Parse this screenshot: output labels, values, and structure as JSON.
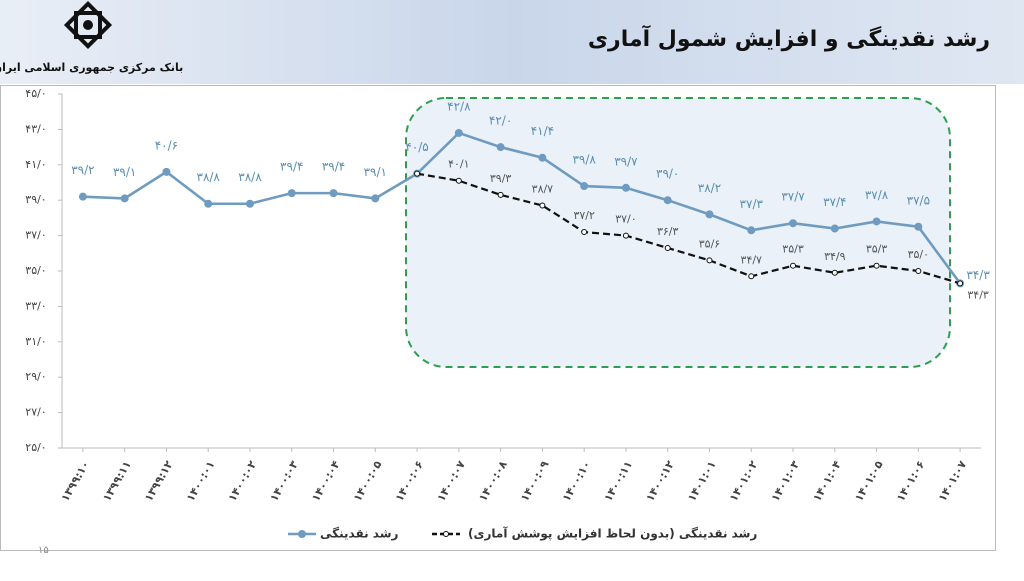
{
  "header": {
    "bank": "بانک مرکزی جمهوری اسلامی ایران",
    "page": "۱۵"
  },
  "chart_data": {
    "type": "line",
    "title": "رشد نقدینگی و افزایش شمول آماری",
    "categories": [
      "۱۳۹۹:۱۰",
      "۱۳۹۹:۱۱",
      "۱۳۹۹:۱۲",
      "۱۴۰۰:۰۱",
      "۱۴۰۰:۰۲",
      "۱۴۰۰:۰۳",
      "۱۴۰۰:۰۴",
      "۱۴۰۰:۰۵",
      "۱۴۰۰:۰۶",
      "۱۴۰۰:۰۷",
      "۱۴۰۰:۰۸",
      "۱۴۰۰:۰۹",
      "۱۴۰۰:۱۰",
      "۱۴۰۰:۱۱",
      "۱۴۰۰:۱۲",
      "۱۴۰۱:۰۱",
      "۱۴۰۱:۰۲",
      "۱۴۰۱:۰۳",
      "۱۴۰۱:۰۴",
      "۱۴۰۱:۰۵",
      "۱۴۰۱:۰۶",
      "۱۴۰۱:۰۷"
    ],
    "series": [
      {
        "name": "رشد نقدینگی",
        "color": "#6f9bc0",
        "dashed": false,
        "values": [
          39.2,
          39.1,
          40.6,
          38.8,
          38.8,
          39.4,
          39.4,
          39.1,
          40.5,
          42.8,
          42.0,
          41.4,
          39.8,
          39.7,
          39.0,
          38.2,
          37.3,
          37.7,
          37.4,
          37.8,
          37.5,
          34.3
        ],
        "value_labels": [
          "۳۹/۲",
          "۳۹/۱",
          "۴۰/۶",
          "۳۸/۸",
          "۳۸/۸",
          "۳۹/۴",
          "۳۹/۴",
          "۳۹/۱",
          "۴۰/۵",
          "۴۲/۸",
          "۴۲/۰",
          "۴۱/۴",
          "۳۹/۸",
          "۳۹/۷",
          "۳۹/۰",
          "۳۸/۲",
          "۳۷/۳",
          "۳۷/۷",
          "۳۷/۴",
          "۳۷/۸",
          "۳۷/۵",
          "۳۴/۳"
        ]
      },
      {
        "name": "رشد نقدینگی (بدون لحاظ افزایش پوشش آماری)",
        "color": "#111111",
        "dashed": true,
        "values": [
          null,
          null,
          null,
          null,
          null,
          null,
          null,
          null,
          40.5,
          40.1,
          39.3,
          38.7,
          37.2,
          37.0,
          36.3,
          35.6,
          34.7,
          35.3,
          34.9,
          35.3,
          35.0,
          34.3
        ],
        "value_labels": [
          null,
          null,
          null,
          null,
          null,
          null,
          null,
          null,
          null,
          "۴۰/۱",
          "۳۹/۳",
          "۳۸/۷",
          "۳۷/۲",
          "۳۷/۰",
          "۳۶/۳",
          "۳۵/۶",
          "۳۴/۷",
          "۳۵/۳",
          "۳۴/۹",
          "۳۵/۳",
          "۳۵/۰",
          "۳۴/۳"
        ]
      }
    ],
    "ylim": [
      25,
      45
    ],
    "yticks": [
      {
        "value": 25,
        "label": "۲۵/۰"
      },
      {
        "value": 27,
        "label": "۲۷/۰"
      },
      {
        "value": 29,
        "label": "۲۹/۰"
      },
      {
        "value": 31,
        "label": "۳۱/۰"
      },
      {
        "value": 33,
        "label": "۳۳/۰"
      },
      {
        "value": 35,
        "label": "۳۵/۰"
      },
      {
        "value": 37,
        "label": "۳۷/۰"
      },
      {
        "value": 39,
        "label": "۳۹/۰"
      },
      {
        "value": 41,
        "label": "۴۱/۰"
      },
      {
        "value": 43,
        "label": "۴۳/۰"
      },
      {
        "value": 45,
        "label": "۴۵/۰"
      }
    ],
    "grid": false
  }
}
